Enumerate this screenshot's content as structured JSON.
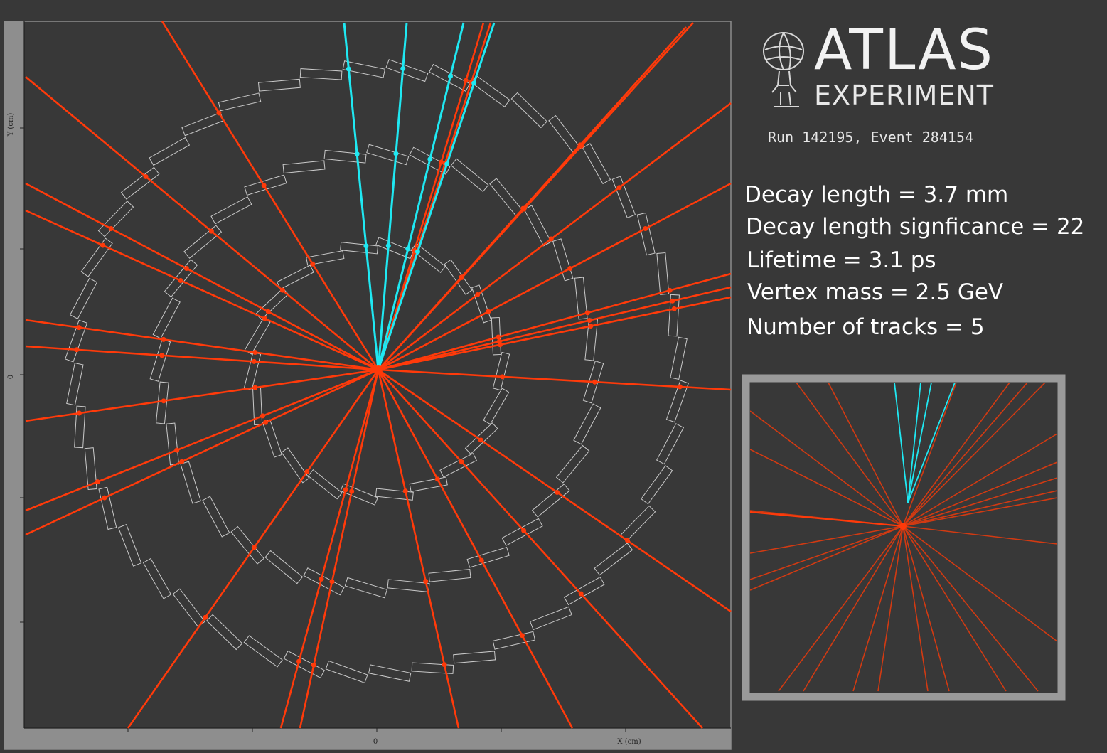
{
  "logo": {
    "title": "ATLAS",
    "subtitle": "EXPERIMENT",
    "run": "Run 142195, Event 284154"
  },
  "info": [
    "Decay length = 3.7 mm",
    "Decay length signficance = 22",
    "Lifetime = 3.1 ps",
    "Vertex mass = 2.5 GeV",
    "Number of tracks = 5"
  ],
  "axes": {
    "x_label": "X (cm)",
    "y_label": "Y (cm)",
    "x_zero": "0",
    "y_zero": "0"
  },
  "colors": {
    "background": "#383838",
    "track_red": "#ff3a0a",
    "track_cyan": "#1fe8f2",
    "module": "#c9c9c9",
    "inset_frame": "#9a9a9a"
  }
}
